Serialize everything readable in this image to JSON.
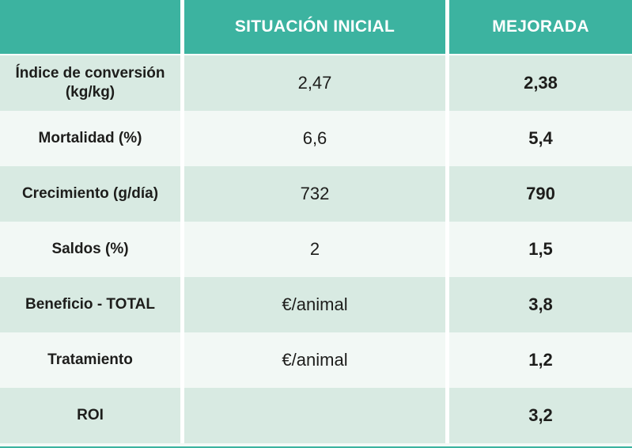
{
  "colors": {
    "header_bg": "#3cb3a0",
    "row_green": "#d8eae2",
    "row_light": "#f2f8f5",
    "header_text": "#ffffff",
    "body_text": "#1d1d1b",
    "separator": "#ffffff"
  },
  "table": {
    "header": {
      "label_col": "",
      "initial": "SITUACIÓN INICIAL",
      "improved": "MEJORADA"
    },
    "rows": [
      {
        "label_lines": [
          "Índice de conversión",
          "(kg/kg)"
        ],
        "initial": "2,47",
        "improved": "2,38"
      },
      {
        "label_lines": [
          "Mortalidad (%)"
        ],
        "initial": "6,6",
        "improved": "5,4"
      },
      {
        "label_lines": [
          "Crecimiento (g/día)"
        ],
        "initial": "732",
        "improved": "790"
      },
      {
        "label_lines": [
          "Saldos (%)"
        ],
        "initial": "2",
        "improved": "1,5"
      },
      {
        "label_lines": [
          "Beneficio - TOTAL"
        ],
        "initial": "€/animal",
        "improved": "3,8"
      },
      {
        "label_lines": [
          "Tratamiento"
        ],
        "initial": "€/animal",
        "improved": "1,2"
      },
      {
        "label_lines": [
          "ROI"
        ],
        "initial": "",
        "improved": "3,2"
      }
    ]
  },
  "chart_data": {
    "type": "table",
    "title": "",
    "columns": [
      "",
      "SITUACIÓN INICIAL",
      "MEJORADA"
    ],
    "rows": [
      [
        "Índice de conversión (kg/kg)",
        "2,47",
        "2,38"
      ],
      [
        "Mortalidad (%)",
        "6,6",
        "5,4"
      ],
      [
        "Crecimiento (g/día)",
        "732",
        "790"
      ],
      [
        "Saldos (%)",
        "2",
        "1,5"
      ],
      [
        "Beneficio - TOTAL",
        "€/animal",
        "3,8"
      ],
      [
        "Tratamiento",
        "€/animal",
        "1,2"
      ],
      [
        "ROI",
        "",
        "3,2"
      ]
    ],
    "layout": {
      "header_background": "#3cb3a0",
      "alternating_row_colors": [
        "#d8eae2",
        "#f2f8f5"
      ],
      "grid": "white column separators"
    }
  }
}
